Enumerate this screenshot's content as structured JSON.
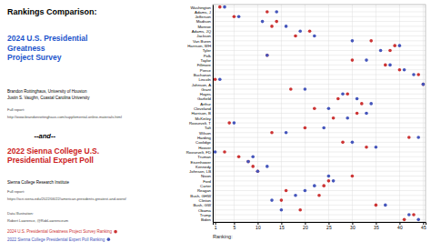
{
  "chart_data": {
    "type": "scatter",
    "title": "Rankings Comparison:",
    "x_label": "Ranking:",
    "categories": [
      "Washington",
      "Adams, J",
      "Jefferson",
      "Madison",
      "Monroe",
      "Adams, JQ",
      "Jackson",
      "Van Buren",
      "Harrison, WH",
      "Tyler",
      "Polk",
      "Taylor",
      "Fillmore",
      "Pierce",
      "Buchanan",
      "Lincoln",
      "Johnson, A",
      "Grant",
      "Hayes",
      "Garfield",
      "Arthur",
      "Cleveland",
      "Harrison, B",
      "McKinley",
      "Roosevelt, T",
      "Taft",
      "Wilson",
      "Harding",
      "Coolidge",
      "Hoover",
      "Roosevelt, FD",
      "Truman",
      "Eisenhower",
      "Kennedy",
      "Johnson, LB",
      "Nixon",
      "Ford",
      "Carter",
      "Reagan",
      "Bush, GHW",
      "Clinton",
      "Bush, GW",
      "Obama",
      "Trump",
      "Biden"
    ],
    "series": [
      {
        "name": "2024 U.S. Presidential Greatness Project Survey Ranking",
        "color": "#cc3333",
        "values": [
          2,
          12,
          5,
          14,
          13,
          21,
          18,
          34,
          39,
          38,
          12,
          30,
          37,
          40,
          44,
          1,
          45,
          17,
          29,
          27,
          32,
          22,
          31,
          26,
          4,
          20,
          13,
          42,
          28,
          33,
          3,
          6,
          8,
          9,
          10,
          30,
          25,
          24,
          16,
          23,
          15,
          35,
          19,
          43,
          41
        ]
      },
      {
        "name": "2022 Sienna College Presidential Expert Poll Ranking",
        "color": "#4455bb",
        "values": [
          3,
          14,
          6,
          11,
          16,
          19,
          22,
          30,
          40,
          36,
          12,
          33,
          38,
          41,
          43,
          2,
          45,
          20,
          28,
          31,
          34,
          25,
          33,
          29,
          5,
          24,
          16,
          44,
          30,
          35,
          1,
          9,
          8,
          12,
          10,
          25,
          26,
          22,
          20,
          18,
          13,
          37,
          15,
          42,
          44
        ]
      }
    ],
    "xlim": [
      0.5,
      45.5
    ],
    "xticks": [
      1,
      5,
      10,
      15,
      20,
      25,
      30,
      35,
      40,
      45
    ],
    "grid": true,
    "annotations": [
      {
        "text": "2024 U.S. Presidential\nGreatness\nProject Survey",
        "color": "#2255cc"
      },
      {
        "text": "Brandon Rottinghaus, University of Houston\nJustin S. Vaughn, Coastal Carolina University"
      },
      {
        "text": "Full report:"
      },
      {
        "text": "http://www.brandonrottinghaus.com/supplemental-online-materials.html"
      },
      {
        "text": "--and--"
      },
      {
        "text": "2022 Sienna College U.S.\nPresidential Expert Poll",
        "color": "#cc2222"
      },
      {
        "text": "Sienna College Research Institute"
      },
      {
        "text": "Full report:"
      },
      {
        "text": "https://scri.siena.edu/2022/06/22/american-presidents-greatest-and-worst/"
      },
      {
        "text": "Data Illustration:"
      },
      {
        "text": "Robert Lawrence, @RobLawrenceum"
      }
    ]
  }
}
